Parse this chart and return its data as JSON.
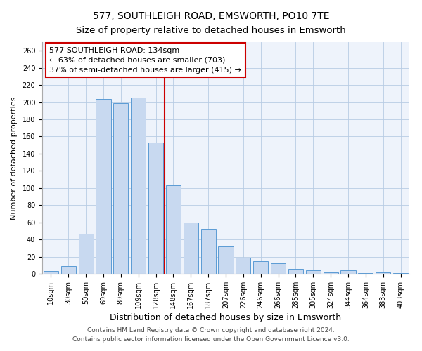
{
  "title": "577, SOUTHLEIGH ROAD, EMSWORTH, PO10 7TE",
  "subtitle": "Size of property relative to detached houses in Emsworth",
  "xlabel": "Distribution of detached houses by size in Emsworth",
  "ylabel": "Number of detached properties",
  "categories": [
    "10sqm",
    "30sqm",
    "50sqm",
    "69sqm",
    "89sqm",
    "109sqm",
    "128sqm",
    "148sqm",
    "167sqm",
    "187sqm",
    "207sqm",
    "226sqm",
    "246sqm",
    "266sqm",
    "285sqm",
    "305sqm",
    "324sqm",
    "344sqm",
    "364sqm",
    "383sqm",
    "403sqm"
  ],
  "values": [
    3,
    9,
    47,
    204,
    199,
    205,
    153,
    103,
    60,
    52,
    32,
    19,
    15,
    12,
    6,
    4,
    2,
    4,
    1,
    2,
    1
  ],
  "bar_color": "#c8d9f0",
  "bar_edge_color": "#5b9bd5",
  "vline_x": 6.5,
  "vline_color": "#cc0000",
  "annotation_text": "577 SOUTHLEIGH ROAD: 134sqm\n← 63% of detached houses are smaller (703)\n37% of semi-detached houses are larger (415) →",
  "annotation_box_color": "#ffffff",
  "annotation_box_edge": "#cc0000",
  "ylim": [
    0,
    270
  ],
  "yticks": [
    0,
    20,
    40,
    60,
    80,
    100,
    120,
    140,
    160,
    180,
    200,
    220,
    240,
    260
  ],
  "footer_line1": "Contains HM Land Registry data © Crown copyright and database right 2024.",
  "footer_line2": "Contains public sector information licensed under the Open Government Licence v3.0.",
  "title_fontsize": 10,
  "xlabel_fontsize": 9,
  "ylabel_fontsize": 8,
  "tick_fontsize": 7,
  "annotation_fontsize": 8,
  "footer_fontsize": 6.5,
  "bg_color": "#eef3fb"
}
